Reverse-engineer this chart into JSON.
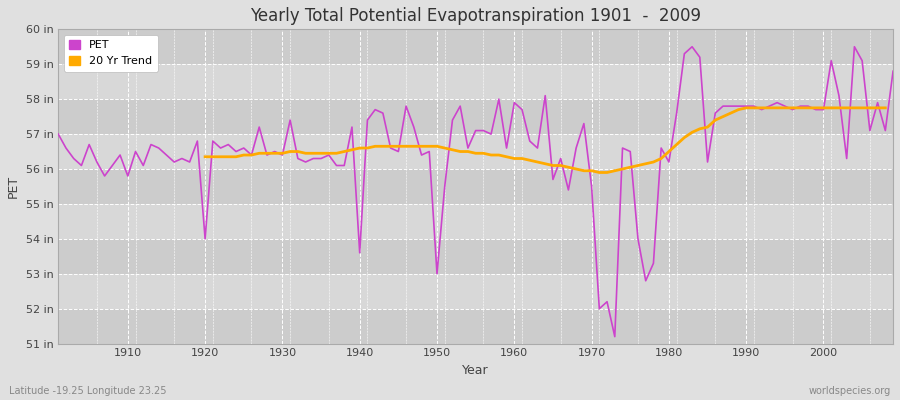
{
  "title": "Yearly Total Potential Evapotranspiration 1901  -  2009",
  "xlabel": "Year",
  "ylabel": "PET",
  "pet_color": "#cc44cc",
  "trend_color": "#ffaa00",
  "fig_bg_color": "#e0e0e0",
  "plot_bg_color": "#d8d8d8",
  "band_color_dark": "#cccccc",
  "band_color_light": "#d8d8d8",
  "grid_color": "#ffffff",
  "subtitle_left": "Latitude -19.25 Longitude 23.25",
  "subtitle_right": "worldspecies.org",
  "ylim": [
    51,
    60
  ],
  "ytick_values": [
    51,
    52,
    53,
    54,
    55,
    56,
    57,
    58,
    59,
    60
  ],
  "ytick_labels": [
    "51 in",
    "52 in",
    "53 in",
    "54 in",
    "55 in",
    "56 in",
    "57 in",
    "58 in",
    "59 in",
    "60 in"
  ],
  "xlim": [
    1901,
    2009
  ],
  "xtick_positions": [
    1910,
    1920,
    1930,
    1940,
    1950,
    1960,
    1970,
    1980,
    1990,
    2000
  ],
  "years": [
    1901,
    1902,
    1903,
    1904,
    1905,
    1906,
    1907,
    1908,
    1909,
    1910,
    1911,
    1912,
    1913,
    1914,
    1915,
    1916,
    1917,
    1918,
    1919,
    1920,
    1921,
    1922,
    1923,
    1924,
    1925,
    1926,
    1927,
    1928,
    1929,
    1930,
    1931,
    1932,
    1933,
    1934,
    1935,
    1936,
    1937,
    1938,
    1939,
    1940,
    1941,
    1942,
    1943,
    1944,
    1945,
    1946,
    1947,
    1948,
    1949,
    1950,
    1951,
    1952,
    1953,
    1954,
    1955,
    1956,
    1957,
    1958,
    1959,
    1960,
    1961,
    1962,
    1963,
    1964,
    1965,
    1966,
    1967,
    1968,
    1969,
    1970,
    1971,
    1972,
    1973,
    1974,
    1975,
    1976,
    1977,
    1978,
    1979,
    1980,
    1981,
    1982,
    1983,
    1984,
    1985,
    1986,
    1987,
    1988,
    1989,
    1990,
    1991,
    1992,
    1993,
    1994,
    1995,
    1996,
    1997,
    1998,
    1999,
    2000,
    2001,
    2002,
    2003,
    2004,
    2005,
    2006,
    2007,
    2008,
    2009
  ],
  "pet_values": [
    57.0,
    56.6,
    56.3,
    56.1,
    56.7,
    56.2,
    55.8,
    56.1,
    56.4,
    55.8,
    56.5,
    56.1,
    56.7,
    56.6,
    56.4,
    56.2,
    56.3,
    56.2,
    56.8,
    54.0,
    56.8,
    56.6,
    56.7,
    56.5,
    56.6,
    56.4,
    57.2,
    56.4,
    56.5,
    56.4,
    57.4,
    56.3,
    56.2,
    56.3,
    56.3,
    56.4,
    56.1,
    56.1,
    57.2,
    53.6,
    57.4,
    57.7,
    57.6,
    56.6,
    56.5,
    57.8,
    57.2,
    56.4,
    56.5,
    53.0,
    55.5,
    57.4,
    57.8,
    56.6,
    57.1,
    57.1,
    57.0,
    58.0,
    56.6,
    57.9,
    57.7,
    56.8,
    56.6,
    58.1,
    55.7,
    56.3,
    55.4,
    56.6,
    57.3,
    55.5,
    52.0,
    52.2,
    51.2,
    56.6,
    56.5,
    54.0,
    52.8,
    53.3,
    56.6,
    56.2,
    57.6,
    59.3,
    59.5,
    59.2,
    56.2,
    57.6,
    57.8,
    57.8,
    57.8,
    57.8,
    57.8,
    57.7,
    57.8,
    57.9,
    57.8,
    57.7,
    57.8,
    57.8,
    57.7,
    57.7,
    59.1,
    58.1,
    56.3,
    59.5,
    59.1,
    57.1,
    57.9,
    57.1,
    58.8
  ],
  "trend_values": [
    null,
    null,
    null,
    null,
    null,
    null,
    null,
    null,
    null,
    null,
    null,
    null,
    null,
    null,
    null,
    null,
    null,
    null,
    null,
    56.35,
    56.35,
    56.35,
    56.35,
    56.35,
    56.4,
    56.4,
    56.45,
    56.45,
    56.45,
    56.45,
    56.5,
    56.5,
    56.45,
    56.45,
    56.45,
    56.45,
    56.45,
    56.5,
    56.55,
    56.6,
    56.6,
    56.65,
    56.65,
    56.65,
    56.65,
    56.65,
    56.65,
    56.65,
    56.65,
    56.65,
    56.6,
    56.55,
    56.5,
    56.5,
    56.45,
    56.45,
    56.4,
    56.4,
    56.35,
    56.3,
    56.3,
    56.25,
    56.2,
    56.15,
    56.1,
    56.1,
    56.05,
    56.0,
    55.95,
    55.95,
    55.9,
    55.9,
    55.95,
    56.0,
    56.05,
    56.1,
    56.15,
    56.2,
    56.3,
    56.5,
    56.7,
    56.9,
    57.05,
    57.15,
    57.2,
    57.4,
    57.5,
    57.6,
    57.7,
    57.75,
    57.75,
    57.75,
    57.75,
    57.75,
    57.75,
    57.75,
    57.75,
    57.75,
    57.75,
    57.75,
    57.75,
    57.75,
    57.75,
    57.75,
    57.75,
    57.75,
    57.75,
    57.75
  ]
}
